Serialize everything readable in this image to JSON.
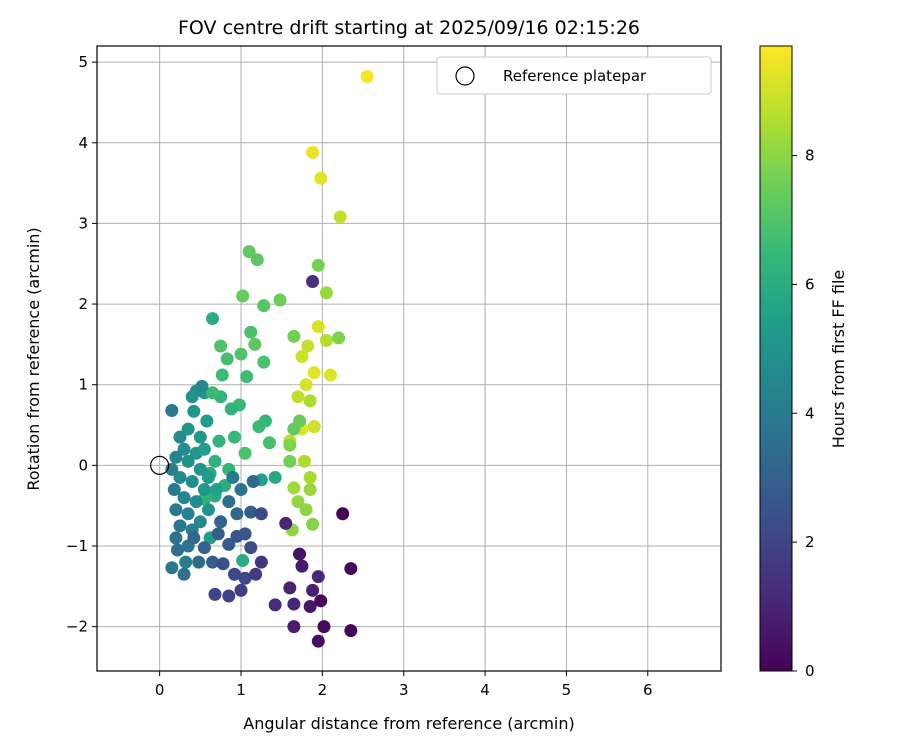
{
  "chart_data": {
    "type": "scatter",
    "title": "FOV centre drift starting at 2025/09/16 02:15:26",
    "xlabel": "Angular distance from reference (arcmin)",
    "ylabel": "Rotation from reference (arcmin)",
    "xlim": [
      -0.77,
      6.9
    ],
    "ylim": [
      -2.55,
      5.2
    ],
    "xticks": [
      0,
      1,
      2,
      3,
      4,
      5,
      6
    ],
    "yticks": [
      -2,
      -1,
      0,
      1,
      2,
      3,
      4,
      5
    ],
    "grid": true,
    "legend": {
      "placement": "top-right",
      "entries": [
        "Reference platepar"
      ]
    },
    "reference_point": {
      "x": 0,
      "y": 0
    },
    "colorbar": {
      "label": "Hours from first FF file",
      "range": [
        0,
        9.7
      ],
      "ticks": [
        0,
        2,
        4,
        6,
        8
      ],
      "colormap": "viridis"
    },
    "colormap_stops": [
      "#440154",
      "#482878",
      "#3e4989",
      "#31688e",
      "#26828e",
      "#1f9e89",
      "#35b779",
      "#6ece58",
      "#b5de2b",
      "#fde725"
    ],
    "series": [
      {
        "points": [
          [
            2.55,
            4.82,
            9.6
          ],
          [
            1.88,
            3.88,
            9.4
          ],
          [
            1.98,
            3.56,
            9.3
          ],
          [
            2.22,
            3.08,
            8.8
          ],
          [
            1.95,
            1.72,
            9.1
          ],
          [
            2.05,
            1.55,
            8.6
          ],
          [
            1.82,
            1.48,
            8.9
          ],
          [
            1.75,
            1.35,
            9.0
          ],
          [
            1.9,
            1.15,
            9.3
          ],
          [
            2.1,
            1.12,
            9.2
          ],
          [
            1.8,
            1.0,
            9.1
          ],
          [
            1.85,
            0.8,
            8.5
          ],
          [
            1.7,
            0.85,
            8.8
          ],
          [
            1.75,
            0.45,
            9.2
          ],
          [
            1.9,
            0.48,
            9.0
          ],
          [
            1.6,
            0.3,
            8.7
          ],
          [
            1.78,
            0.05,
            8.5
          ],
          [
            1.85,
            -0.15,
            8.4
          ],
          [
            1.65,
            -0.28,
            8.3
          ],
          [
            1.85,
            -0.3,
            8.2
          ],
          [
            1.7,
            -0.45,
            8.1
          ],
          [
            1.8,
            -0.55,
            8.0
          ],
          [
            1.63,
            -0.8,
            8.0
          ],
          [
            1.88,
            -0.73,
            7.9
          ],
          [
            1.95,
            2.48,
            7.7
          ],
          [
            2.05,
            2.14,
            8.2
          ],
          [
            1.65,
            1.6,
            7.6
          ],
          [
            2.2,
            1.58,
            7.8
          ],
          [
            1.72,
            0.55,
            7.4
          ],
          [
            1.65,
            0.45,
            7.3
          ],
          [
            1.6,
            0.25,
            7.8
          ],
          [
            1.6,
            0.05,
            7.6
          ],
          [
            1.1,
            2.65,
            7.3
          ],
          [
            1.2,
            2.55,
            7.2
          ],
          [
            1.02,
            2.1,
            7.4
          ],
          [
            1.28,
            1.98,
            7.1
          ],
          [
            1.48,
            2.05,
            7.5
          ],
          [
            1.12,
            1.65,
            6.9
          ],
          [
            1.17,
            1.5,
            7.2
          ],
          [
            1.0,
            1.38,
            7.0
          ],
          [
            0.83,
            1.32,
            6.8
          ],
          [
            0.75,
            1.48,
            7.0
          ],
          [
            1.28,
            1.28,
            6.9
          ],
          [
            1.07,
            1.1,
            6.7
          ],
          [
            0.77,
            1.12,
            6.6
          ],
          [
            0.65,
            1.82,
            6.0
          ],
          [
            0.98,
            0.75,
            6.5
          ],
          [
            0.88,
            0.7,
            6.3
          ],
          [
            1.22,
            0.48,
            6.6
          ],
          [
            1.3,
            0.55,
            6.4
          ],
          [
            1.35,
            0.28,
            6.8
          ],
          [
            0.92,
            0.35,
            6.5
          ],
          [
            0.73,
            0.3,
            6.3
          ],
          [
            0.68,
            0.05,
            6.2
          ],
          [
            1.05,
            0.15,
            6.9
          ],
          [
            0.85,
            -0.05,
            6.4
          ],
          [
            0.62,
            -0.1,
            6.0
          ],
          [
            0.8,
            -0.25,
            6.1
          ],
          [
            0.55,
            -0.42,
            6.3
          ],
          [
            0.68,
            -0.38,
            6.0
          ],
          [
            1.42,
            -0.15,
            5.8
          ],
          [
            1.25,
            -0.18,
            5.6
          ],
          [
            0.62,
            -0.9,
            5.4
          ],
          [
            1.02,
            -1.18,
            6.0
          ],
          [
            0.55,
            0.9,
            5.2
          ],
          [
            0.75,
            0.85,
            6.3
          ],
          [
            0.65,
            0.9,
            6.6
          ],
          [
            0.45,
            0.92,
            4.8
          ],
          [
            0.52,
            0.98,
            4.5
          ],
          [
            0.4,
            0.85,
            4.9
          ],
          [
            0.42,
            0.67,
            5.1
          ],
          [
            0.58,
            0.55,
            5.3
          ],
          [
            0.15,
            0.68,
            4.0
          ],
          [
            0.35,
            0.45,
            5.0
          ],
          [
            0.5,
            0.35,
            5.2
          ],
          [
            0.25,
            0.35,
            4.6
          ],
          [
            0.3,
            0.2,
            4.8
          ],
          [
            0.45,
            0.15,
            5.1
          ],
          [
            0.55,
            0.2,
            5.4
          ],
          [
            0.2,
            0.1,
            4.5
          ],
          [
            0.35,
            0.05,
            4.9
          ],
          [
            0.5,
            -0.05,
            5.0
          ],
          [
            0.6,
            -0.15,
            5.3
          ],
          [
            0.15,
            -0.05,
            4.2
          ],
          [
            0.25,
            -0.15,
            4.6
          ],
          [
            0.4,
            -0.2,
            4.9
          ],
          [
            0.55,
            -0.3,
            5.2
          ],
          [
            0.7,
            -0.3,
            5.5
          ],
          [
            0.18,
            -0.3,
            4.0
          ],
          [
            0.3,
            -0.4,
            4.4
          ],
          [
            0.45,
            -0.45,
            4.7
          ],
          [
            0.6,
            -0.55,
            5.0
          ],
          [
            0.2,
            -0.55,
            3.9
          ],
          [
            0.35,
            -0.6,
            4.3
          ],
          [
            0.5,
            -0.7,
            4.6
          ],
          [
            0.25,
            -0.75,
            3.8
          ],
          [
            0.4,
            -0.8,
            4.1
          ],
          [
            0.2,
            -0.9,
            3.6
          ],
          [
            0.35,
            -1.0,
            3.8
          ],
          [
            0.3,
            -1.35,
            3.6
          ],
          [
            0.15,
            -1.27,
            3.9
          ],
          [
            0.22,
            -1.05,
            3.5
          ],
          [
            0.48,
            -1.2,
            3.4
          ],
          [
            0.32,
            -1.2,
            4.2
          ],
          [
            0.42,
            -0.9,
            3.2
          ],
          [
            0.55,
            -1.02,
            3.0
          ],
          [
            0.65,
            -1.2,
            2.8
          ],
          [
            0.72,
            -0.85,
            2.9
          ],
          [
            0.85,
            -0.98,
            2.7
          ],
          [
            0.95,
            -0.88,
            2.5
          ],
          [
            1.05,
            -0.85,
            2.6
          ],
          [
            1.12,
            -1.02,
            2.3
          ],
          [
            0.78,
            -1.22,
            2.4
          ],
          [
            0.92,
            -1.35,
            2.2
          ],
          [
            1.05,
            -1.4,
            2.1
          ],
          [
            0.85,
            -1.62,
            1.9
          ],
          [
            1.0,
            -1.55,
            1.8
          ],
          [
            0.68,
            -1.6,
            2.0
          ],
          [
            1.18,
            -1.35,
            1.7
          ],
          [
            1.25,
            -1.2,
            1.6
          ],
          [
            1.12,
            -0.58,
            2.8
          ],
          [
            1.25,
            -0.6,
            2.2
          ],
          [
            0.95,
            -0.6,
            3.2
          ],
          [
            0.85,
            -0.45,
            3.5
          ],
          [
            1.0,
            -0.3,
            3.7
          ],
          [
            0.9,
            -0.15,
            3.9
          ],
          [
            1.15,
            -0.2,
            3.3
          ],
          [
            0.75,
            -0.7,
            3.1
          ],
          [
            1.42,
            -1.73,
            1.2
          ],
          [
            1.65,
            -2.0,
            0.8
          ],
          [
            1.65,
            -1.72,
            1.0
          ],
          [
            1.85,
            -1.75,
            0.6
          ],
          [
            1.88,
            -1.55,
            0.9
          ],
          [
            1.95,
            -1.38,
            1.1
          ],
          [
            1.75,
            -1.25,
            0.7
          ],
          [
            1.72,
            -1.1,
            0.5
          ],
          [
            1.6,
            -1.52,
            0.9
          ],
          [
            1.95,
            -2.18,
            0.4
          ],
          [
            2.02,
            -2.0,
            0.3
          ],
          [
            1.98,
            -1.68,
            0.2
          ],
          [
            1.55,
            -0.72,
            1.0
          ],
          [
            2.25,
            -0.6,
            0.1
          ],
          [
            2.35,
            -1.28,
            0.2
          ],
          [
            2.35,
            -2.05,
            0.15
          ],
          [
            1.88,
            2.28,
            1.3
          ]
        ]
      }
    ]
  }
}
